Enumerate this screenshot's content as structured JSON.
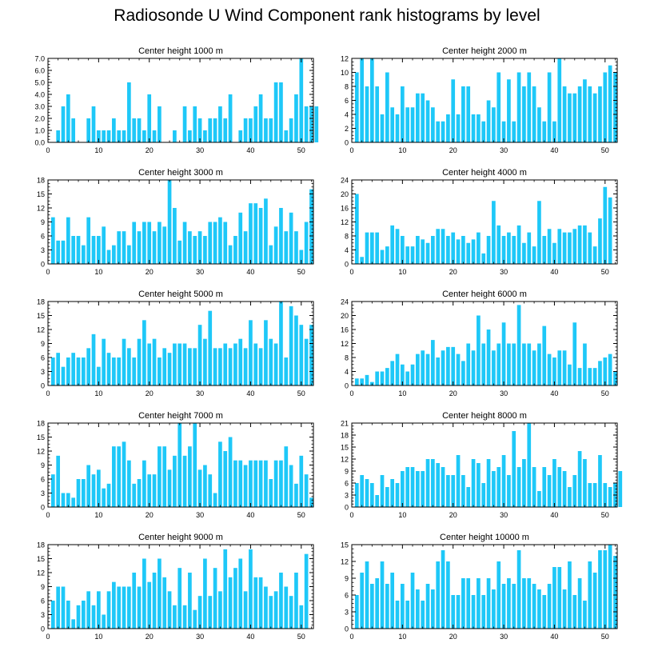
{
  "title": "Radiosonde U Wind Component rank histograms by level",
  "bar_color": "#1ec8f8",
  "chart_data": [
    {
      "type": "bar",
      "title": "Center height 1000 m",
      "ylim": [
        0,
        7
      ],
      "yticks": [
        "0.0",
        "1.0",
        "2.0",
        "3.0",
        "4.0",
        "5.0",
        "6.0",
        "7.0"
      ],
      "xticks": [
        "0",
        "10",
        "20",
        "30",
        "40",
        "50"
      ],
      "values": [
        0,
        1,
        3,
        4,
        2,
        0,
        0,
        2,
        3,
        1,
        1,
        1,
        2,
        1,
        1,
        5,
        2,
        2,
        1,
        4,
        1,
        3,
        0,
        0,
        1,
        0,
        3,
        1,
        3,
        2,
        1,
        2,
        2,
        3,
        2,
        4,
        0,
        1,
        2,
        2,
        3,
        4,
        2,
        2,
        5,
        5,
        1,
        2,
        4,
        7,
        3,
        3,
        3
      ]
    },
    {
      "type": "bar",
      "title": "Center height 2000 m",
      "ylim": [
        0,
        12
      ],
      "yticks": [
        "0",
        "2",
        "4",
        "6",
        "8",
        "10",
        "12"
      ],
      "xticks": [
        "0",
        "10",
        "20",
        "30",
        "40",
        "50"
      ],
      "values": [
        10,
        12,
        8,
        12,
        8,
        4,
        10,
        5,
        4,
        8,
        5,
        5,
        7,
        7,
        6,
        5,
        3,
        3,
        4,
        9,
        4,
        8,
        8,
        4,
        4,
        3,
        6,
        5,
        10,
        3,
        9,
        3,
        10,
        8,
        10,
        8,
        5,
        3,
        10,
        3,
        12,
        8,
        7,
        7,
        8,
        9,
        8,
        7,
        8,
        10,
        11,
        10
      ]
    },
    {
      "type": "bar",
      "title": "Center height 3000 m",
      "ylim": [
        0,
        18
      ],
      "yticks": [
        "0",
        "3",
        "6",
        "9",
        "12",
        "15",
        "18"
      ],
      "xticks": [
        "0",
        "10",
        "20",
        "30",
        "40",
        "50"
      ],
      "values": [
        10,
        5,
        5,
        10,
        6,
        6,
        4,
        10,
        6,
        6,
        8,
        3,
        4,
        7,
        7,
        4,
        9,
        7,
        9,
        9,
        7,
        9,
        8,
        18,
        12,
        5,
        9,
        7,
        6,
        7,
        6,
        9,
        9,
        10,
        9,
        4,
        6,
        11,
        7,
        13,
        13,
        12,
        14,
        4,
        8,
        12,
        7,
        11,
        7,
        3,
        9,
        16
      ]
    },
    {
      "type": "bar",
      "title": "Center height 4000 m",
      "ylim": [
        0,
        24
      ],
      "yticks": [
        "0",
        "4",
        "8",
        "12",
        "16",
        "20",
        "24"
      ],
      "xticks": [
        "0",
        "10",
        "20",
        "30",
        "40",
        "50"
      ],
      "values": [
        20,
        2,
        9,
        9,
        9,
        4,
        5,
        11,
        10,
        8,
        5,
        5,
        8,
        7,
        6,
        8,
        10,
        10,
        8,
        9,
        7,
        8,
        6,
        7,
        9,
        3,
        8,
        18,
        11,
        8,
        9,
        8,
        11,
        6,
        9,
        5,
        18,
        8,
        10,
        6,
        10,
        9,
        9,
        10,
        11,
        11,
        9,
        5,
        13,
        22,
        19
      ]
    },
    {
      "type": "bar",
      "title": "Center height 5000 m",
      "ylim": [
        0,
        18
      ],
      "yticks": [
        "0",
        "3",
        "6",
        "9",
        "12",
        "15",
        "18"
      ],
      "xticks": [
        "0",
        "10",
        "20",
        "30",
        "40",
        "50"
      ],
      "values": [
        6,
        7,
        4,
        6,
        7,
        6,
        6,
        8,
        11,
        4,
        10,
        7,
        6,
        6,
        10,
        8,
        6,
        10,
        14,
        9,
        10,
        6,
        8,
        7,
        9,
        9,
        9,
        8,
        8,
        13,
        10,
        16,
        8,
        8,
        9,
        8,
        9,
        10,
        8,
        14,
        9,
        8,
        14,
        10,
        9,
        18,
        6,
        17,
        15,
        13,
        10,
        13
      ]
    },
    {
      "type": "bar",
      "title": "Center height 6000 m",
      "ylim": [
        0,
        24
      ],
      "yticks": [
        "0",
        "4",
        "8",
        "12",
        "16",
        "20",
        "24"
      ],
      "xticks": [
        "0",
        "10",
        "20",
        "30",
        "40",
        "50"
      ],
      "values": [
        2,
        2,
        3,
        1,
        4,
        4,
        5,
        7,
        9,
        6,
        4,
        6,
        9,
        10,
        9,
        13,
        8,
        10,
        11,
        11,
        9,
        7,
        12,
        10,
        20,
        12,
        16,
        10,
        12,
        18,
        12,
        12,
        23,
        12,
        12,
        10,
        12,
        17,
        9,
        8,
        10,
        10,
        6,
        18,
        5,
        12,
        5,
        5,
        7,
        8,
        9,
        4
      ]
    },
    {
      "type": "bar",
      "title": "Center height 7000 m",
      "ylim": [
        0,
        18
      ],
      "yticks": [
        "0",
        "3",
        "6",
        "9",
        "12",
        "15",
        "18"
      ],
      "xticks": [
        "0",
        "10",
        "20",
        "30",
        "40",
        "50"
      ],
      "values": [
        7,
        11,
        3,
        3,
        2,
        6,
        6,
        9,
        7,
        8,
        4,
        5,
        13,
        13,
        14,
        10,
        5,
        6,
        10,
        7,
        7,
        13,
        13,
        8,
        11,
        18,
        11,
        13,
        18,
        8,
        9,
        7,
        3,
        14,
        12,
        15,
        10,
        10,
        9,
        10,
        10,
        10,
        10,
        6,
        10,
        10,
        13,
        9,
        5,
        11,
        7,
        2
      ]
    },
    {
      "type": "bar",
      "title": "Center height 8000 m",
      "ylim": [
        0,
        21
      ],
      "yticks": [
        "0",
        "3",
        "6",
        "9",
        "12",
        "15",
        "18",
        "21"
      ],
      "xticks": [
        "0",
        "10",
        "20",
        "30",
        "40",
        "50"
      ],
      "values": [
        6,
        8,
        7,
        6,
        3,
        8,
        5,
        7,
        6,
        9,
        10,
        10,
        9,
        9,
        12,
        12,
        11,
        10,
        8,
        8,
        13,
        8,
        5,
        12,
        11,
        6,
        12,
        9,
        10,
        13,
        8,
        19,
        10,
        12,
        21,
        10,
        4,
        10,
        8,
        12,
        10,
        9,
        5,
        8,
        14,
        12,
        6,
        6,
        13,
        6,
        5,
        6,
        9
      ]
    },
    {
      "type": "bar",
      "title": "Center height 9000 m",
      "ylim": [
        0,
        18
      ],
      "yticks": [
        "0",
        "3",
        "6",
        "9",
        "12",
        "15",
        "18"
      ],
      "xticks": [
        "0",
        "10",
        "20",
        "30",
        "40",
        "50"
      ],
      "values": [
        6,
        9,
        9,
        6,
        2,
        5,
        6,
        8,
        5,
        8,
        3,
        8,
        10,
        9,
        9,
        9,
        12,
        9,
        15,
        10,
        12,
        15,
        11,
        8,
        5,
        13,
        5,
        12,
        4,
        7,
        15,
        7,
        13,
        8,
        17,
        11,
        13,
        15,
        8,
        17,
        11,
        11,
        9,
        7,
        8,
        12,
        9,
        7,
        12,
        5,
        16
      ]
    },
    {
      "type": "bar",
      "title": "Center height 10000 m",
      "ylim": [
        0,
        15
      ],
      "yticks": [
        "0",
        "3",
        "6",
        "9",
        "12",
        "15"
      ],
      "xticks": [
        "0",
        "10",
        "20",
        "30",
        "40",
        "50"
      ],
      "values": [
        6,
        10,
        12,
        8,
        9,
        12,
        8,
        10,
        5,
        8,
        5,
        10,
        7,
        5,
        8,
        7,
        12,
        14,
        12,
        6,
        6,
        9,
        9,
        6,
        9,
        6,
        9,
        7,
        12,
        8,
        9,
        8,
        14,
        9,
        9,
        8,
        7,
        6,
        8,
        11,
        11,
        7,
        12,
        6,
        9,
        5,
        12,
        10,
        14,
        14,
        15,
        13
      ]
    }
  ]
}
